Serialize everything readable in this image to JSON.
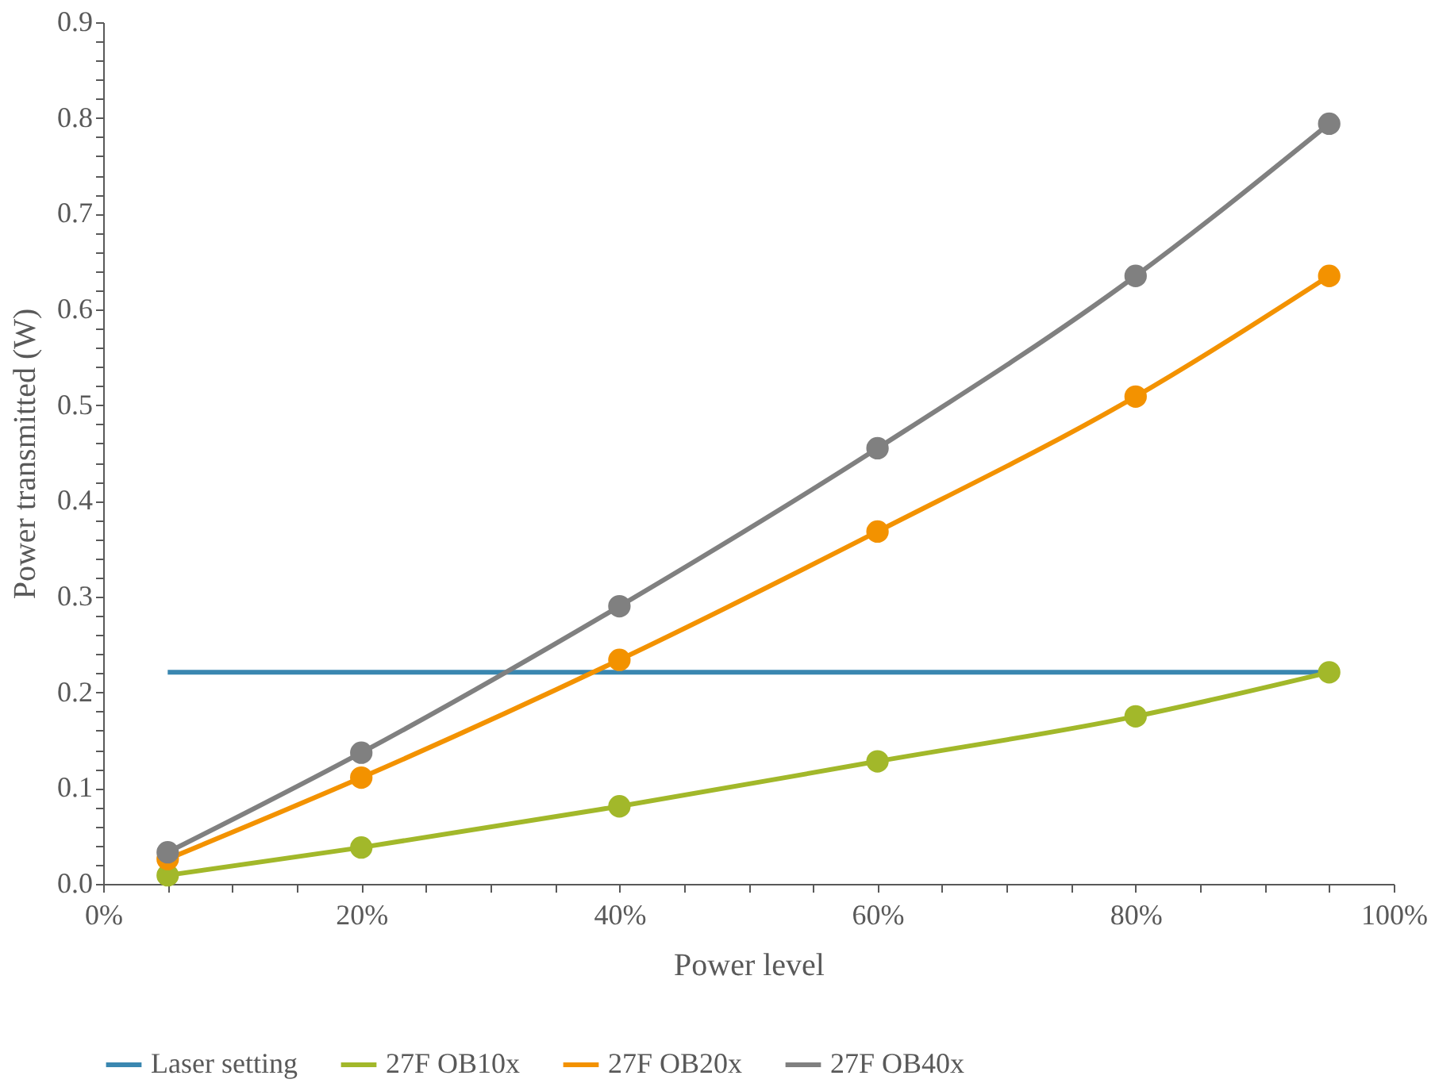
{
  "chart_data": {
    "type": "line",
    "xlabel": "Power level",
    "ylabel": "Power transmitted (W)",
    "x": [
      5,
      20,
      40,
      60,
      80,
      95
    ],
    "series": [
      {
        "name": "Laser setting",
        "color": "#3a87b0",
        "marker": "none",
        "x": [
          5,
          95
        ],
        "values": [
          0.221,
          0.221
        ]
      },
      {
        "name": "27F OB10x",
        "color": "#a2b82a",
        "marker": "circle",
        "values": [
          0.009,
          0.038,
          0.081,
          0.128,
          0.175,
          0.221
        ]
      },
      {
        "name": "27F OB20x",
        "color": "#f39200",
        "marker": "circle",
        "values": [
          0.026,
          0.111,
          0.234,
          0.368,
          0.509,
          0.635
        ]
      },
      {
        "name": "27F OB40x",
        "color": "#808080",
        "marker": "circle",
        "values": [
          0.033,
          0.137,
          0.29,
          0.455,
          0.635,
          0.794
        ]
      }
    ],
    "xlim": [
      0,
      100
    ],
    "xticks": [
      {
        "value": 0,
        "label": "0%"
      },
      {
        "value": 5,
        "label": null
      },
      {
        "value": 10,
        "label": null
      },
      {
        "value": 15,
        "label": null
      },
      {
        "value": 20,
        "label": "20%"
      },
      {
        "value": 25,
        "label": null
      },
      {
        "value": 30,
        "label": null
      },
      {
        "value": 35,
        "label": null
      },
      {
        "value": 40,
        "label": "40%"
      },
      {
        "value": 45,
        "label": null
      },
      {
        "value": 50,
        "label": null
      },
      {
        "value": 55,
        "label": null
      },
      {
        "value": 60,
        "label": "60%"
      },
      {
        "value": 65,
        "label": null
      },
      {
        "value": 70,
        "label": null
      },
      {
        "value": 75,
        "label": null
      },
      {
        "value": 80,
        "label": "80%"
      },
      {
        "value": 85,
        "label": null
      },
      {
        "value": 90,
        "label": null
      },
      {
        "value": 95,
        "label": null
      },
      {
        "value": 100,
        "label": "100%"
      }
    ],
    "ylim": [
      0,
      0.9
    ],
    "yticks": [
      {
        "value": 0,
        "label": "0.0"
      },
      {
        "value": 0.02,
        "label": null
      },
      {
        "value": 0.04,
        "label": null
      },
      {
        "value": 0.06,
        "label": null
      },
      {
        "value": 0.08,
        "label": null
      },
      {
        "value": 0.1,
        "label": "0.1"
      },
      {
        "value": 0.12,
        "label": null
      },
      {
        "value": 0.14,
        "label": null
      },
      {
        "value": 0.16,
        "label": null
      },
      {
        "value": 0.18,
        "label": null
      },
      {
        "value": 0.2,
        "label": "0.2"
      },
      {
        "value": 0.22,
        "label": null
      },
      {
        "value": 0.24,
        "label": null
      },
      {
        "value": 0.26,
        "label": null
      },
      {
        "value": 0.28,
        "label": null
      },
      {
        "value": 0.3,
        "label": "0.3"
      },
      {
        "value": 0.32,
        "label": null
      },
      {
        "value": 0.34,
        "label": null
      },
      {
        "value": 0.36,
        "label": null
      },
      {
        "value": 0.38,
        "label": null
      },
      {
        "value": 0.4,
        "label": "0.4"
      },
      {
        "value": 0.42,
        "label": null
      },
      {
        "value": 0.44,
        "label": null
      },
      {
        "value": 0.46,
        "label": null
      },
      {
        "value": 0.48,
        "label": null
      },
      {
        "value": 0.5,
        "label": "0.5"
      },
      {
        "value": 0.52,
        "label": null
      },
      {
        "value": 0.54,
        "label": null
      },
      {
        "value": 0.56,
        "label": null
      },
      {
        "value": 0.58,
        "label": null
      },
      {
        "value": 0.6,
        "label": "0.6"
      },
      {
        "value": 0.62,
        "label": null
      },
      {
        "value": 0.64,
        "label": null
      },
      {
        "value": 0.66,
        "label": null
      },
      {
        "value": 0.68,
        "label": null
      },
      {
        "value": 0.7,
        "label": "0.7"
      },
      {
        "value": 0.72,
        "label": null
      },
      {
        "value": 0.74,
        "label": null
      },
      {
        "value": 0.76,
        "label": null
      },
      {
        "value": 0.78,
        "label": null
      },
      {
        "value": 0.8,
        "label": "0.8"
      },
      {
        "value": 0.82,
        "label": null
      },
      {
        "value": 0.84,
        "label": null
      },
      {
        "value": 0.86,
        "label": null
      },
      {
        "value": 0.88,
        "label": null
      },
      {
        "value": 0.9,
        "label": "0.9"
      }
    ],
    "grid": false,
    "legend": "bottom",
    "line_style": "solid"
  }
}
